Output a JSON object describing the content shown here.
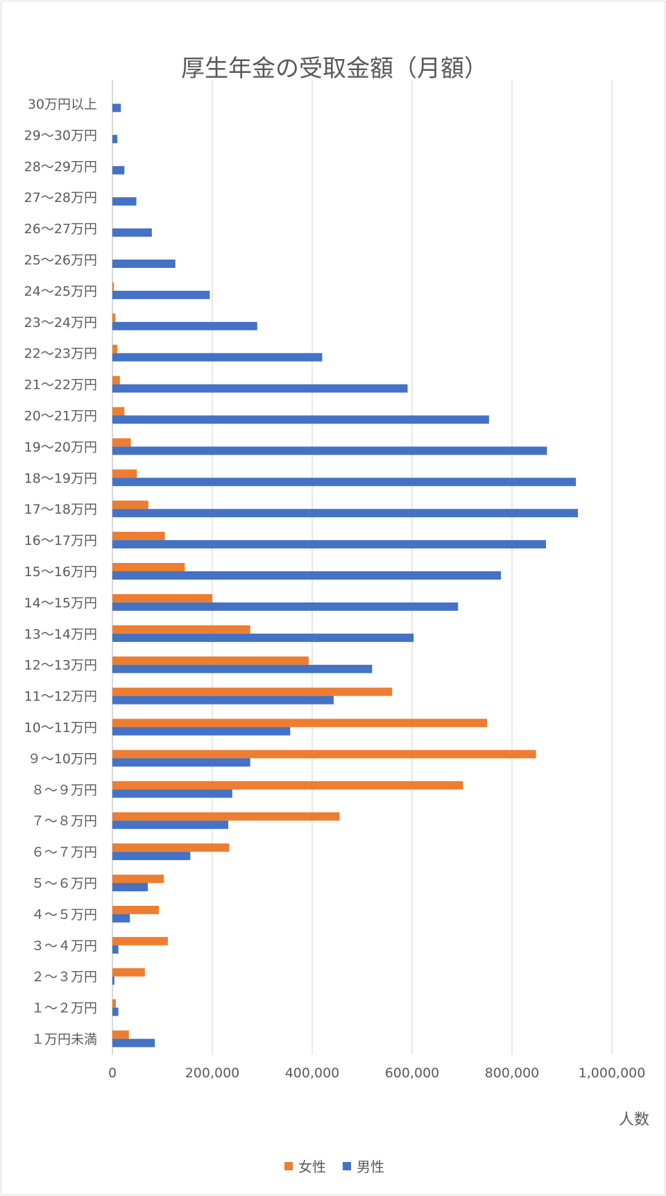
{
  "chart_data": {
    "type": "bar",
    "orientation": "horizontal",
    "title": "厚生年金の受取金額（月額）",
    "xlabel": "人数",
    "ylabel": "",
    "xlim": [
      0,
      1000000
    ],
    "x_ticks": [
      "0",
      "200,000",
      "400,000",
      "600,000",
      "800,000",
      "1,000,000"
    ],
    "x_tick_values": [
      0,
      200000,
      400000,
      600000,
      800000,
      1000000
    ],
    "grid": true,
    "legend_position": "bottom",
    "categories": [
      "30万円以上",
      "29～30万円",
      "28～29万円",
      "27～28万円",
      "26～27万円",
      "25～26万円",
      "24～25万円",
      "23～24万円",
      "22～23万円",
      "21～22万円",
      "20～21万円",
      "19～20万円",
      "18～19万円",
      "17～18万円",
      "16～17万円",
      "15～16万円",
      "14～15万円",
      "13～14万円",
      "12～13万円",
      "11～12万円",
      "10～11万円",
      "９～10万円",
      "８～９万円",
      "７～８万円",
      "６～７万円",
      "５～６万円",
      "４～５万円",
      "３～４万円",
      "２～３万円",
      "１～２万円",
      "１万円未満"
    ],
    "series": [
      {
        "name": "女性",
        "color": "#ED7D31",
        "values": [
          0,
          0,
          0,
          0,
          0,
          0,
          3000,
          6000,
          10000,
          15000,
          24000,
          37000,
          49000,
          72000,
          105000,
          145000,
          200000,
          276000,
          393000,
          560000,
          750000,
          848000,
          702000,
          455000,
          234000,
          103000,
          93000,
          111000,
          65000,
          7000,
          33000
        ]
      },
      {
        "name": "男性",
        "color": "#4472C4",
        "values": [
          17000,
          10000,
          24000,
          48000,
          79000,
          126000,
          195000,
          290000,
          420000,
          591000,
          754000,
          870000,
          928000,
          932000,
          868000,
          778000,
          692000,
          603000,
          520000,
          443000,
          356000,
          276000,
          240000,
          232000,
          156000,
          71000,
          35000,
          12000,
          4000,
          12000,
          85000
        ]
      }
    ]
  }
}
